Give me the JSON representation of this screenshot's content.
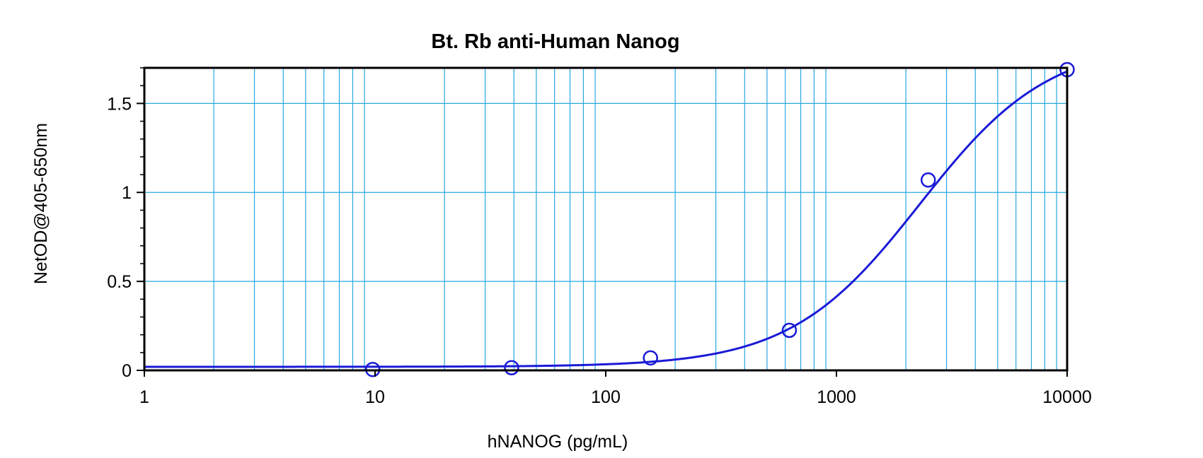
{
  "chart_data": {
    "type": "scatter",
    "title": "Bt. Rb anti-Human Nanog",
    "xlabel": "hNANOG (pg/mL)",
    "ylabel": "NetOD@405-650nm",
    "xscale": "log",
    "xlim": [
      1,
      10000
    ],
    "ylim": [
      0,
      1.7
    ],
    "x_ticks": [
      1,
      10,
      100,
      1000,
      10000
    ],
    "x_tick_labels": [
      "1",
      "10",
      "100",
      "1000",
      "10000"
    ],
    "y_ticks": [
      0,
      0.5,
      1,
      1.5
    ],
    "y_tick_labels": [
      "0",
      "0.5",
      "1",
      "1.5"
    ],
    "grid": true,
    "grid_color": "#29a8e0",
    "series_color": "#1a1ad6",
    "series": [
      {
        "marker": "open-circle",
        "x": [
          9.77,
          39.06,
          156.25,
          625,
          2500,
          10000
        ],
        "y": [
          0.005,
          0.015,
          0.07,
          0.225,
          1.07,
          1.69
        ]
      }
    ],
    "fit_curve": {
      "type": "4PL",
      "bottom": 0.02,
      "top": 1.85,
      "ec50": 2300,
      "hill": 1.55
    }
  }
}
